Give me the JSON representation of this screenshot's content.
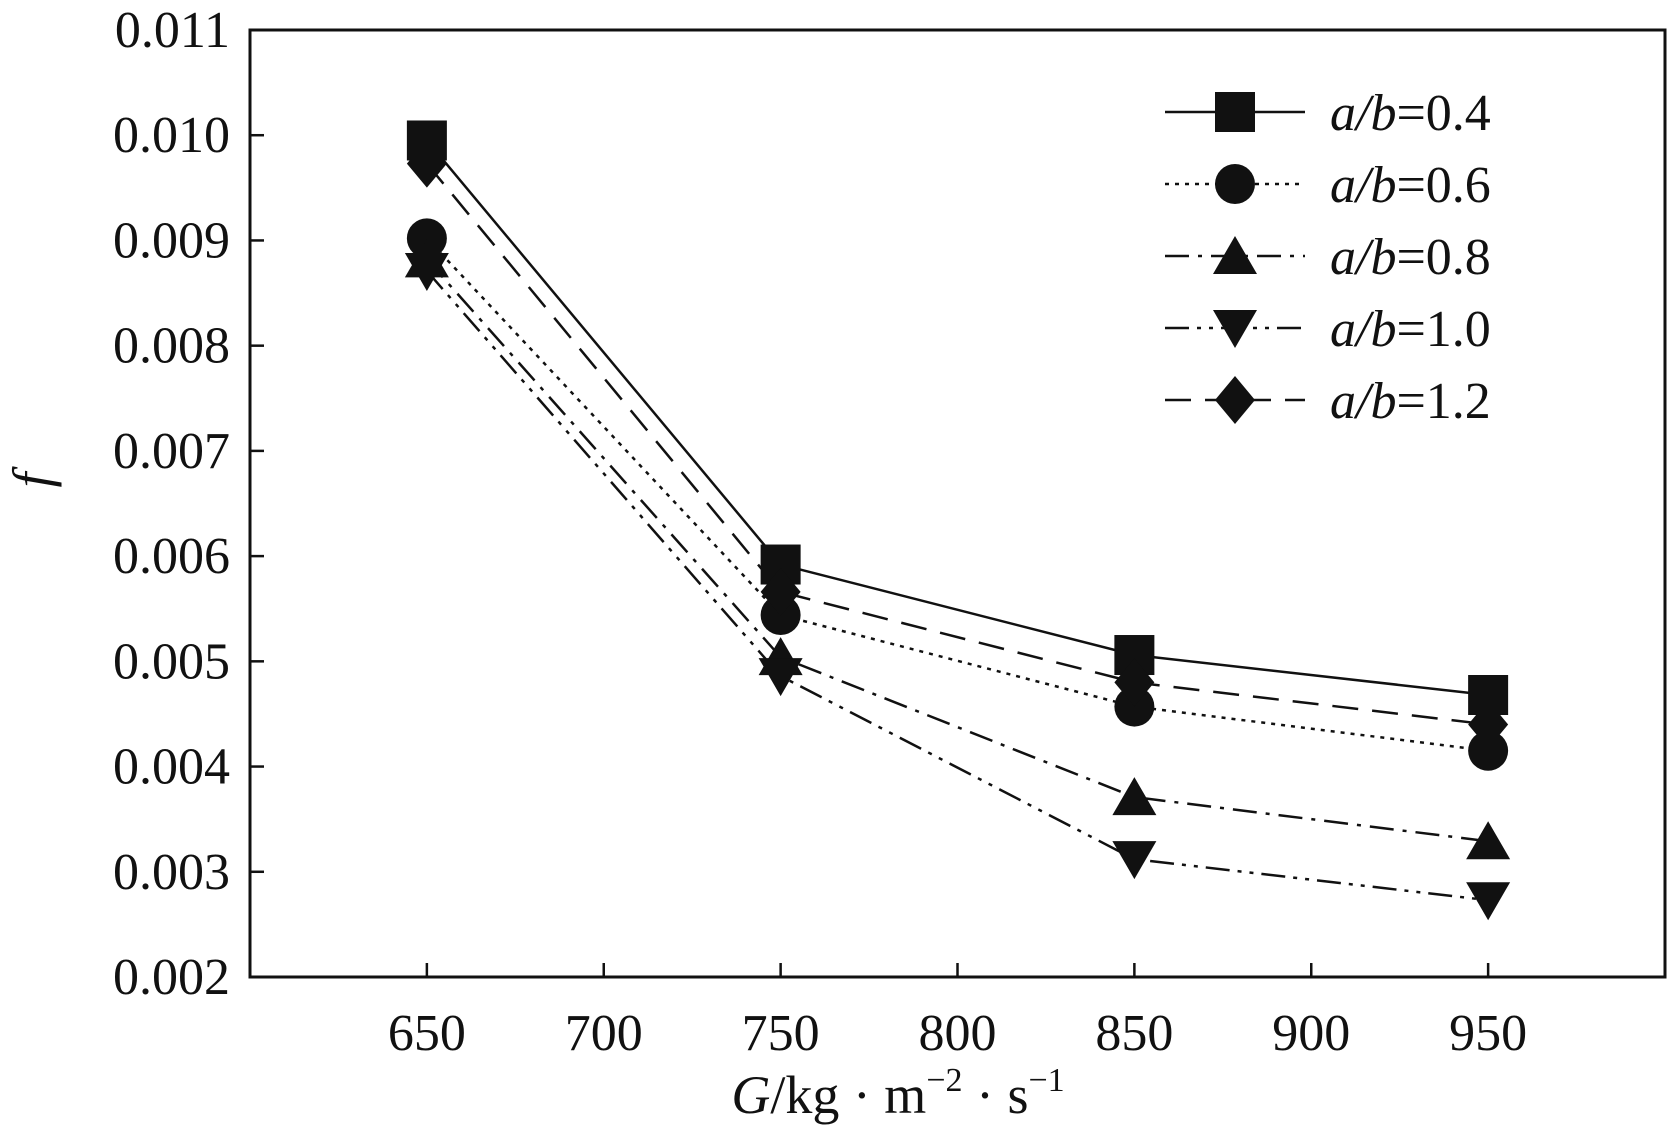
{
  "chart_data": {
    "type": "line",
    "title": "",
    "xlabel": {
      "var": "G",
      "unit": "/kg · m",
      "sup1": "−2",
      "mid": " · s",
      "sup2": "−1"
    },
    "ylabel": "f",
    "xlim": [
      600,
      1000
    ],
    "ylim": [
      0.002,
      0.011
    ],
    "x": [
      650,
      750,
      850,
      950
    ],
    "xticks": [
      "650",
      "700",
      "750",
      "800",
      "850",
      "900",
      "950"
    ],
    "xtick_values": [
      650,
      700,
      750,
      800,
      850,
      900,
      950
    ],
    "yticks": [
      "0.002",
      "0.003",
      "0.004",
      "0.005",
      "0.006",
      "0.007",
      "0.008",
      "0.009",
      "0.010",
      "0.011"
    ],
    "ytick_values": [
      0.002,
      0.003,
      0.004,
      0.005,
      0.006,
      0.007,
      0.008,
      0.009,
      0.01,
      0.011
    ],
    "grid": false,
    "legend_position": "top-right",
    "series": [
      {
        "name": "a/b=0.4",
        "var": "a/b",
        "val": "=0.4",
        "marker": "square",
        "dash": "solid",
        "values": [
          0.00995,
          0.00592,
          0.00506,
          0.00468
        ]
      },
      {
        "name": "a/b=0.6",
        "var": "a/b",
        "val": "=0.6",
        "marker": "circle",
        "dash": "dotted",
        "values": [
          0.00902,
          0.00544,
          0.00457,
          0.00415
        ]
      },
      {
        "name": "a/b=0.8",
        "var": "a/b",
        "val": "=0.8",
        "marker": "triangle-up",
        "dash": "dashdot",
        "values": [
          0.00882,
          0.00504,
          0.00371,
          0.00329
        ]
      },
      {
        "name": "a/b=1.0",
        "var": "a/b",
        "val": "=1.0",
        "marker": "triangle-down",
        "dash": "dashdotdot",
        "values": [
          0.00871,
          0.00486,
          0.00312,
          0.00273
        ]
      },
      {
        "name": "a/b=1.2",
        "var": "a/b",
        "val": "=1.2",
        "marker": "diamond",
        "dash": "dashed",
        "values": [
          0.00973,
          0.00566,
          0.0048,
          0.0044
        ]
      }
    ],
    "colors": {
      "line": "#111111",
      "axis": "#111111",
      "background": "#ffffff"
    }
  }
}
